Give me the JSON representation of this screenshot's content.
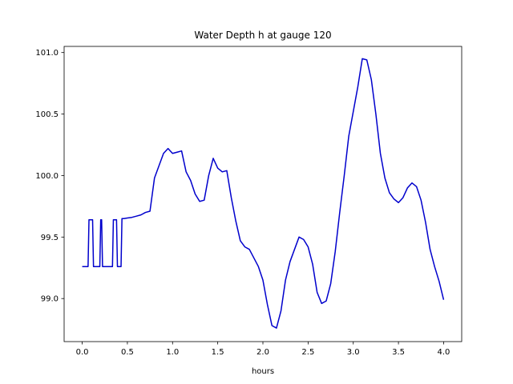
{
  "chart_data": {
    "type": "line",
    "title": "Water Depth h at gauge 120",
    "xlabel": "hours",
    "ylabel": "",
    "xlim": [
      -0.2,
      4.2
    ],
    "ylim": [
      98.65,
      101.05
    ],
    "xticks": [
      0.0,
      0.5,
      1.0,
      1.5,
      2.0,
      2.5,
      3.0,
      3.5,
      4.0
    ],
    "xtick_labels": [
      "0.0",
      "0.5",
      "1.0",
      "1.5",
      "2.0",
      "2.5",
      "3.0",
      "3.5",
      "4.0"
    ],
    "yticks": [
      99.0,
      99.5,
      100.0,
      100.5,
      101.0
    ],
    "ytick_labels": [
      "99.0",
      "99.5",
      "100.0",
      "100.5",
      "101.0"
    ],
    "grid": false,
    "series": [
      {
        "color": "#0000cc",
        "x": [
          0.0,
          0.055,
          0.065,
          0.075,
          0.115,
          0.125,
          0.195,
          0.205,
          0.215,
          0.225,
          0.235,
          0.335,
          0.345,
          0.38,
          0.39,
          0.43,
          0.44,
          0.46,
          0.5,
          0.55,
          0.6,
          0.65,
          0.7,
          0.75,
          0.8,
          0.85,
          0.9,
          0.95,
          1.0,
          1.05,
          1.1,
          1.15,
          1.2,
          1.25,
          1.3,
          1.35,
          1.4,
          1.45,
          1.5,
          1.55,
          1.6,
          1.65,
          1.7,
          1.75,
          1.8,
          1.85,
          1.9,
          1.95,
          2.0,
          2.05,
          2.1,
          2.15,
          2.2,
          2.25,
          2.3,
          2.35,
          2.4,
          2.45,
          2.5,
          2.55,
          2.6,
          2.65,
          2.7,
          2.75,
          2.8,
          2.85,
          2.9,
          2.95,
          3.0,
          3.05,
          3.1,
          3.15,
          3.2,
          3.25,
          3.3,
          3.35,
          3.4,
          3.45,
          3.5,
          3.55,
          3.6,
          3.65,
          3.7,
          3.75,
          3.8,
          3.85,
          3.9,
          3.95,
          4.0
        ],
        "y": [
          99.26,
          99.26,
          99.26,
          99.64,
          99.64,
          99.26,
          99.26,
          99.64,
          99.64,
          99.26,
          99.26,
          99.26,
          99.64,
          99.64,
          99.26,
          99.26,
          99.65,
          99.65,
          99.655,
          99.66,
          99.67,
          99.68,
          99.7,
          99.71,
          99.98,
          100.08,
          100.18,
          100.22,
          100.18,
          100.19,
          100.2,
          100.03,
          99.96,
          99.85,
          99.79,
          99.8,
          100.0,
          100.14,
          100.06,
          100.03,
          100.04,
          99.82,
          99.63,
          99.47,
          99.42,
          99.4,
          99.33,
          99.26,
          99.15,
          98.95,
          98.78,
          98.76,
          98.9,
          99.15,
          99.3,
          99.4,
          99.5,
          99.48,
          99.42,
          99.28,
          99.05,
          98.96,
          98.98,
          99.12,
          99.38,
          99.7,
          100.0,
          100.32,
          100.52,
          100.72,
          100.95,
          100.94,
          100.78,
          100.5,
          100.18,
          99.98,
          99.86,
          99.81,
          99.78,
          99.82,
          99.9,
          99.94,
          99.91,
          99.8,
          99.62,
          99.4,
          99.26,
          99.14,
          98.99
        ]
      }
    ]
  }
}
